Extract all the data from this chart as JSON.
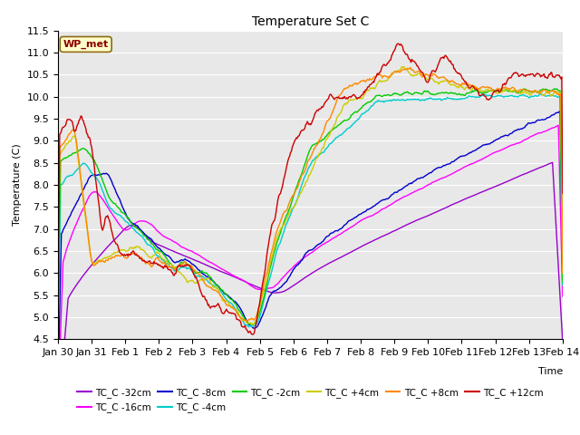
{
  "title": "Temperature Set C",
  "xlabel": "Time",
  "ylabel": "Temperature (C)",
  "ylim": [
    4.5,
    11.5
  ],
  "legend_label": "WP_met",
  "series_labels": [
    "TC_C -32cm",
    "TC_C -16cm",
    "TC_C -8cm",
    "TC_C -4cm",
    "TC_C -2cm",
    "TC_C +4cm",
    "TC_C +8cm",
    "TC_C +12cm"
  ],
  "series_colors": [
    "#9900cc",
    "#ff00ff",
    "#0000cc",
    "#00cccc",
    "#00cc00",
    "#cccc00",
    "#ff8800",
    "#cc0000"
  ],
  "xtick_labels": [
    "Jan 30",
    "Jan 31",
    "Feb 1",
    "Feb 2",
    "Feb 3",
    "Feb 4",
    "Feb 5",
    "Feb 6",
    "Feb 7",
    "Feb 8",
    "Feb 9",
    "Feb 10",
    "Feb 11",
    "Feb 12",
    "Feb 13",
    "Feb 14"
  ],
  "plot_bg": "#e8e8e8",
  "grid_color": "#ffffff"
}
